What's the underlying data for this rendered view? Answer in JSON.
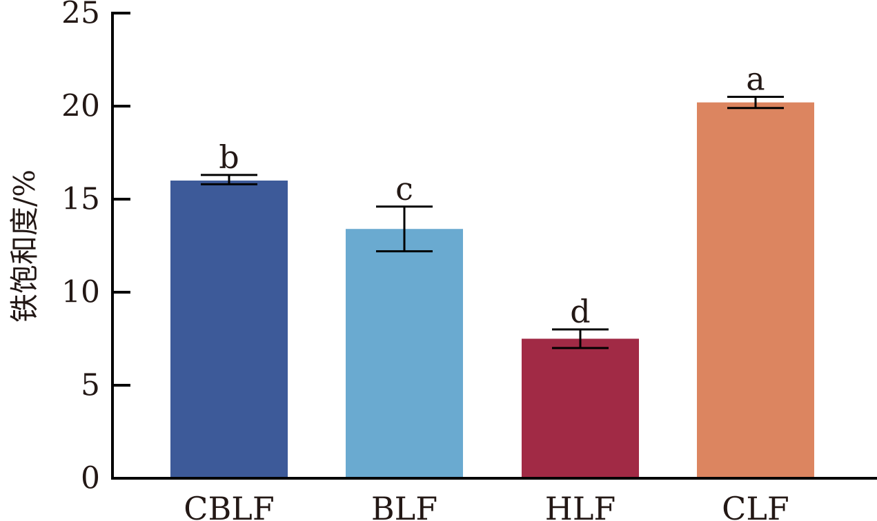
{
  "chart_data": {
    "type": "bar",
    "title": "",
    "xlabel": "",
    "ylabel": "铁饱和度/%",
    "ylim": [
      0,
      25
    ],
    "yticks": [
      0,
      5,
      10,
      15,
      20,
      25
    ],
    "grid": false,
    "categories": [
      "CBLF",
      "BLF",
      "HLF",
      "CLF"
    ],
    "values": [
      16.0,
      13.4,
      7.5,
      20.2
    ],
    "error_low": [
      15.8,
      12.2,
      7.0,
      19.9
    ],
    "error_high": [
      16.3,
      14.6,
      8.0,
      20.5
    ],
    "significance": [
      "b",
      "c",
      "d",
      "a"
    ],
    "colors": [
      "#3d5a99",
      "#6aaad0",
      "#a12a45",
      "#dc8560"
    ]
  },
  "axis_color": "#000000",
  "text_color": "#231815"
}
